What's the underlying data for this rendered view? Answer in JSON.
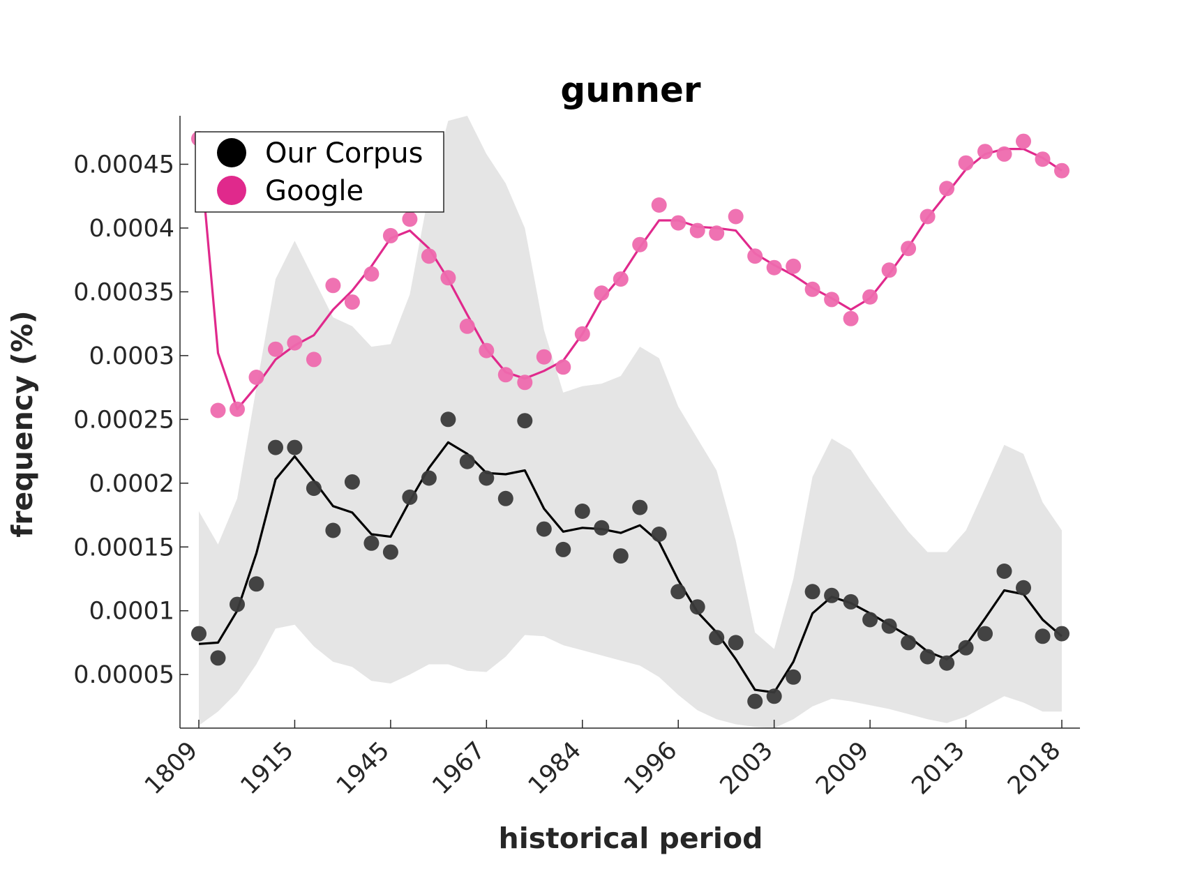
{
  "chart_data": {
    "type": "line",
    "title": "gunner",
    "xlabel": "historical period",
    "ylabel": "frequency (%)",
    "x_tick_labels": [
      "1809",
      "1915",
      "1945",
      "1967",
      "1984",
      "1996",
      "2003",
      "2009",
      "2013",
      "2018"
    ],
    "y_ticks": [
      5e-05,
      0.0001,
      0.00015,
      0.0002,
      0.00025,
      0.0003,
      0.00035,
      0.0004,
      0.00045
    ],
    "y_tick_labels": [
      "0.00005",
      "0.0001",
      "0.00015",
      "0.0002",
      "0.00025",
      "0.0003",
      "0.00035",
      "0.0004",
      "0.00045"
    ],
    "ylim": [
      8e-06,
      0.000488
    ],
    "grid": false,
    "legend_position": "top-left",
    "colors": {
      "corpus": "#000000",
      "corpus_points": "#3a3a3a",
      "google": "#e0298c",
      "google_points": "#ee6aae",
      "band": "#e5e5e5"
    },
    "series": [
      {
        "name": "Our Corpus",
        "points": [
          8.2e-05,
          6.3e-05,
          0.000105,
          0.000121,
          0.000228,
          0.000228,
          0.000196,
          0.000163,
          0.000201,
          0.000153,
          0.000146,
          0.000189,
          0.000204,
          0.00025,
          0.000217,
          0.000204,
          0.000188,
          0.000249,
          0.000164,
          0.000148,
          0.000178,
          0.000165,
          0.000143,
          0.000181,
          0.00016,
          0.000115,
          0.000103,
          7.9e-05,
          7.5e-05,
          2.9e-05,
          3.3e-05,
          4.8e-05,
          0.000115,
          0.000112,
          0.000107,
          9.3e-05,
          8.8e-05,
          7.5e-05,
          6.4e-05,
          5.9e-05,
          7.1e-05,
          8.2e-05,
          0.000131,
          0.000118,
          8e-05,
          8.2e-05
        ],
        "smoothed": [
          7.4e-05,
          7.5e-05,
          0.0001,
          0.000145,
          0.000203,
          0.000221,
          0.000202,
          0.000182,
          0.000177,
          0.00016,
          0.000158,
          0.000186,
          0.000212,
          0.000232,
          0.000223,
          0.000208,
          0.000207,
          0.00021,
          0.00018,
          0.000162,
          0.000165,
          0.000164,
          0.000161,
          0.000167,
          0.000154,
          0.000124,
          9.9e-05,
          8.3e-05,
          6.2e-05,
          3.8e-05,
          3.6e-05,
          6e-05,
          9.8e-05,
          0.000111,
          0.000106,
          9.8e-05,
          8.9e-05,
          8e-05,
          6.8e-05,
          6.2e-05,
          7.3e-05,
          9.4e-05,
          0.000116,
          0.000113,
          9.3e-05,
          8e-05
        ],
        "band_upper": [
          0.000178,
          0.000152,
          0.000188,
          0.000275,
          0.00036,
          0.00039,
          0.00036,
          0.00033,
          0.000323,
          0.000307,
          0.000309,
          0.000348,
          0.000428,
          0.000484,
          0.000488,
          0.000458,
          0.000435,
          0.0004,
          0.00032,
          0.000271,
          0.000276,
          0.000278,
          0.000284,
          0.000307,
          0.000298,
          0.00026,
          0.000235,
          0.00021,
          0.000155,
          8.3e-05,
          7e-05,
          0.000125,
          0.000205,
          0.000235,
          0.000226,
          0.000203,
          0.000182,
          0.000162,
          0.000146,
          0.000146,
          0.000163,
          0.000196,
          0.00023,
          0.000223,
          0.000185,
          0.000163
        ],
        "band_lower": [
          1e-05,
          2.1e-05,
          3.6e-05,
          5.8e-05,
          8.6e-05,
          8.9e-05,
          7.2e-05,
          6e-05,
          5.6e-05,
          4.5e-05,
          4.3e-05,
          5e-05,
          5.8e-05,
          5.8e-05,
          5.3e-05,
          5.2e-05,
          6.4e-05,
          8.1e-05,
          8e-05,
          7.3e-05,
          6.9e-05,
          6.5e-05,
          6.1e-05,
          5.7e-05,
          4.8e-05,
          3.4e-05,
          2.2e-05,
          1.5e-05,
          1.1e-05,
          9e-06,
          8e-06,
          1.5e-05,
          2.5e-05,
          3.1e-05,
          2.9e-05,
          2.6e-05,
          2.3e-05,
          1.9e-05,
          1.5e-05,
          1.2e-05,
          1.7e-05,
          2.5e-05,
          3.3e-05,
          2.8e-05,
          2.1e-05,
          2.1e-05
        ]
      },
      {
        "name": "Google",
        "points": [
          0.00047,
          0.000257,
          0.000258,
          0.000283,
          0.000305,
          0.00031,
          0.000297,
          0.000355,
          0.000342,
          0.000364,
          0.000394,
          0.000407,
          0.000378,
          0.000361,
          0.000323,
          0.000304,
          0.000285,
          0.000279,
          0.000299,
          0.000291,
          0.000317,
          0.000349,
          0.00036,
          0.000387,
          0.000418,
          0.000404,
          0.000398,
          0.000396,
          0.000409,
          0.000378,
          0.000369,
          0.00037,
          0.000352,
          0.000344,
          0.000329,
          0.000346,
          0.000367,
          0.000384,
          0.000409,
          0.000431,
          0.000451,
          0.00046,
          0.000458,
          0.000468,
          0.000454,
          0.000445
        ],
        "smoothed": [
          0.00047,
          0.000302,
          0.000258,
          0.000276,
          0.000297,
          0.000308,
          0.000316,
          0.000336,
          0.000351,
          0.00037,
          0.000392,
          0.000398,
          0.000384,
          0.00036,
          0.000332,
          0.000305,
          0.000287,
          0.000282,
          0.000288,
          0.000296,
          0.000317,
          0.000344,
          0.000362,
          0.000385,
          0.000406,
          0.000406,
          0.000401,
          0.0004,
          0.000398,
          0.00038,
          0.000371,
          0.000363,
          0.000353,
          0.000345,
          0.000336,
          0.000345,
          0.000364,
          0.000385,
          0.000408,
          0.000427,
          0.000446,
          0.000458,
          0.000462,
          0.000462,
          0.000455,
          0.000445
        ]
      }
    ]
  }
}
